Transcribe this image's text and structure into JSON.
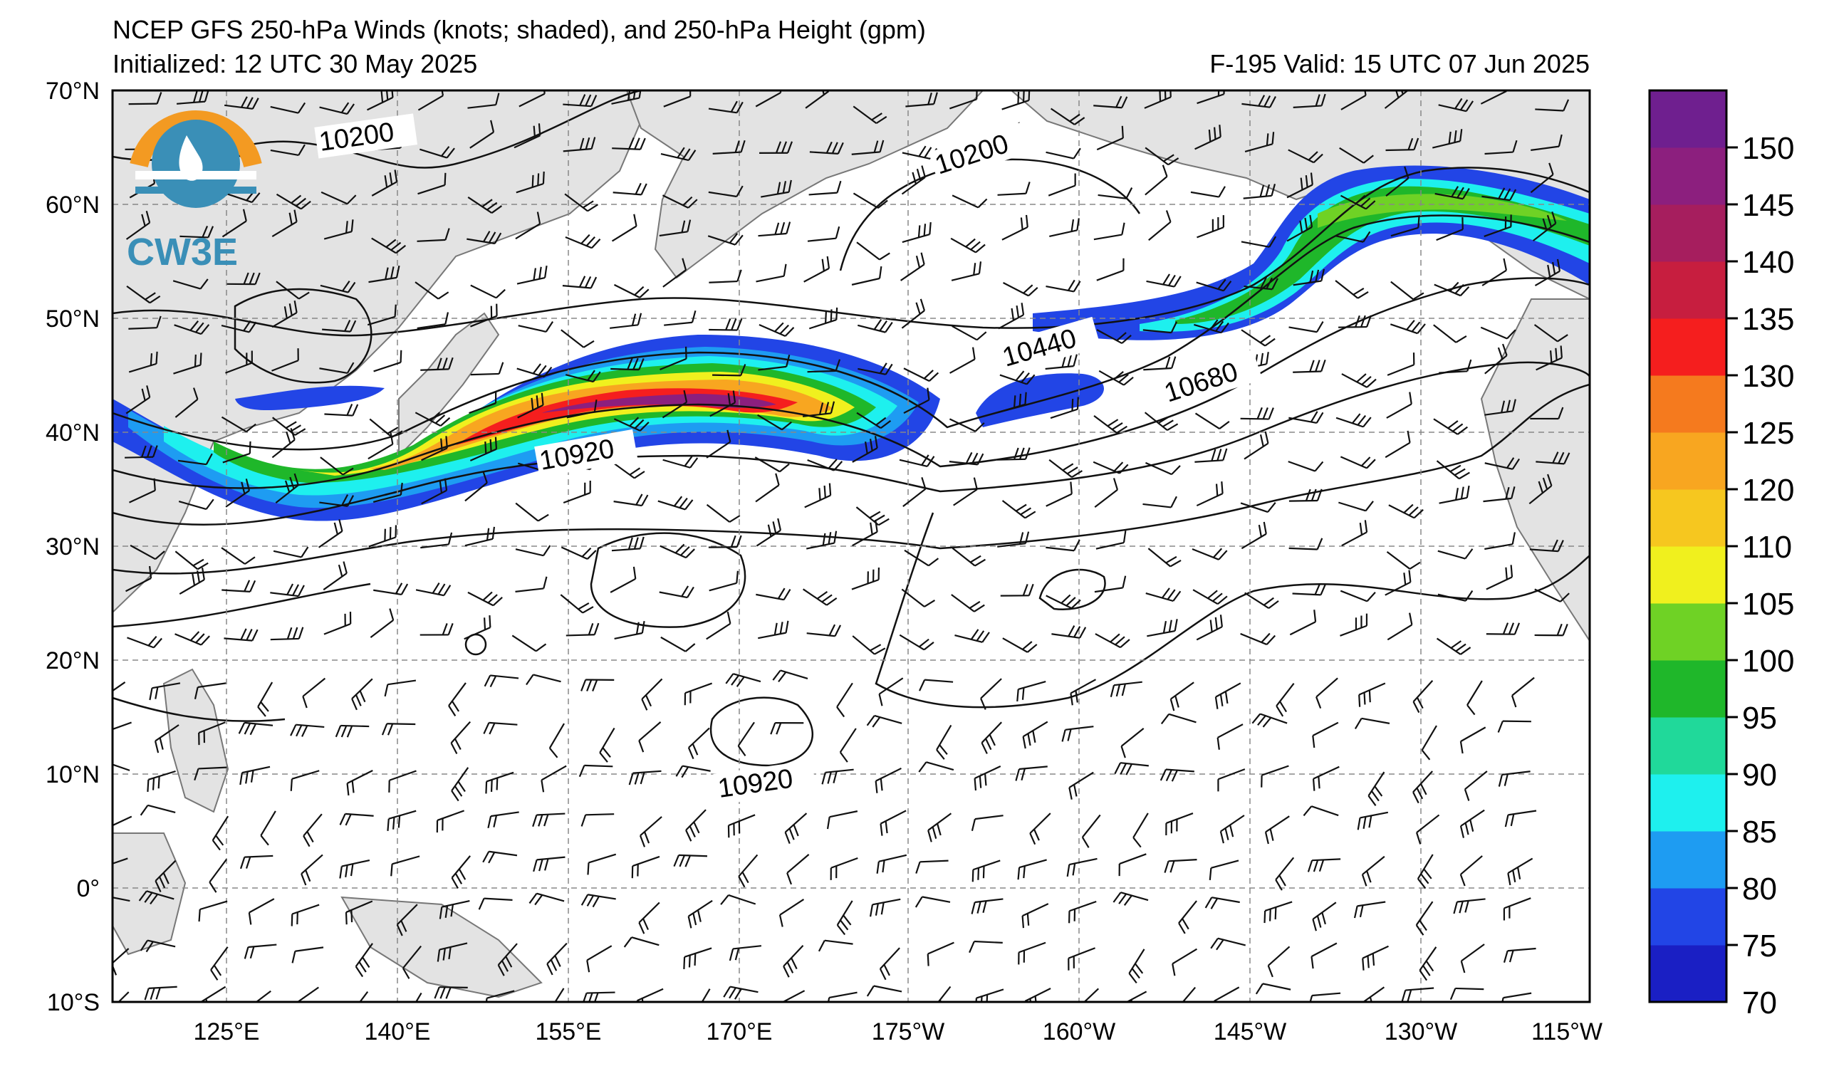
{
  "header": {
    "title": "NCEP GFS 250-hPa Winds (knots; shaded), and 250-hPa Height (gpm)",
    "initialized": "Initialized: 12 UTC 30 May 2025",
    "valid": "F-195  Valid: 15 UTC 07 Jun 2025"
  },
  "logo": {
    "text": "CW3E"
  },
  "axes": {
    "lat_labels": [
      "70°N",
      "60°N",
      "50°N",
      "40°N",
      "30°N",
      "20°N",
      "10°N",
      "0°",
      "10°S"
    ],
    "lon_labels": [
      "125°E",
      "140°E",
      "155°E",
      "170°E",
      "175°W",
      "160°W",
      "145°W",
      "130°W",
      "115°W"
    ]
  },
  "colorbar": {
    "labels": [
      "150",
      "145",
      "140",
      "135",
      "130",
      "125",
      "120",
      "110",
      "105",
      "100",
      "95",
      "90",
      "85",
      "80",
      "75",
      "70"
    ],
    "colors": [
      "#1a1fc4",
      "#2245e6",
      "#1e9cf2",
      "#1ef0ee",
      "#20d99a",
      "#1fb72a",
      "#6fd225",
      "#f0f01e",
      "#f6c71f",
      "#f8a620",
      "#f57a1e",
      "#f51e1e",
      "#c71e3f",
      "#a61e5e",
      "#8c1f7e",
      "#6f1f8f"
    ]
  },
  "contours": {
    "labels": [
      "10200",
      "10200",
      "10440",
      "10680",
      "10920",
      "10920"
    ]
  }
}
